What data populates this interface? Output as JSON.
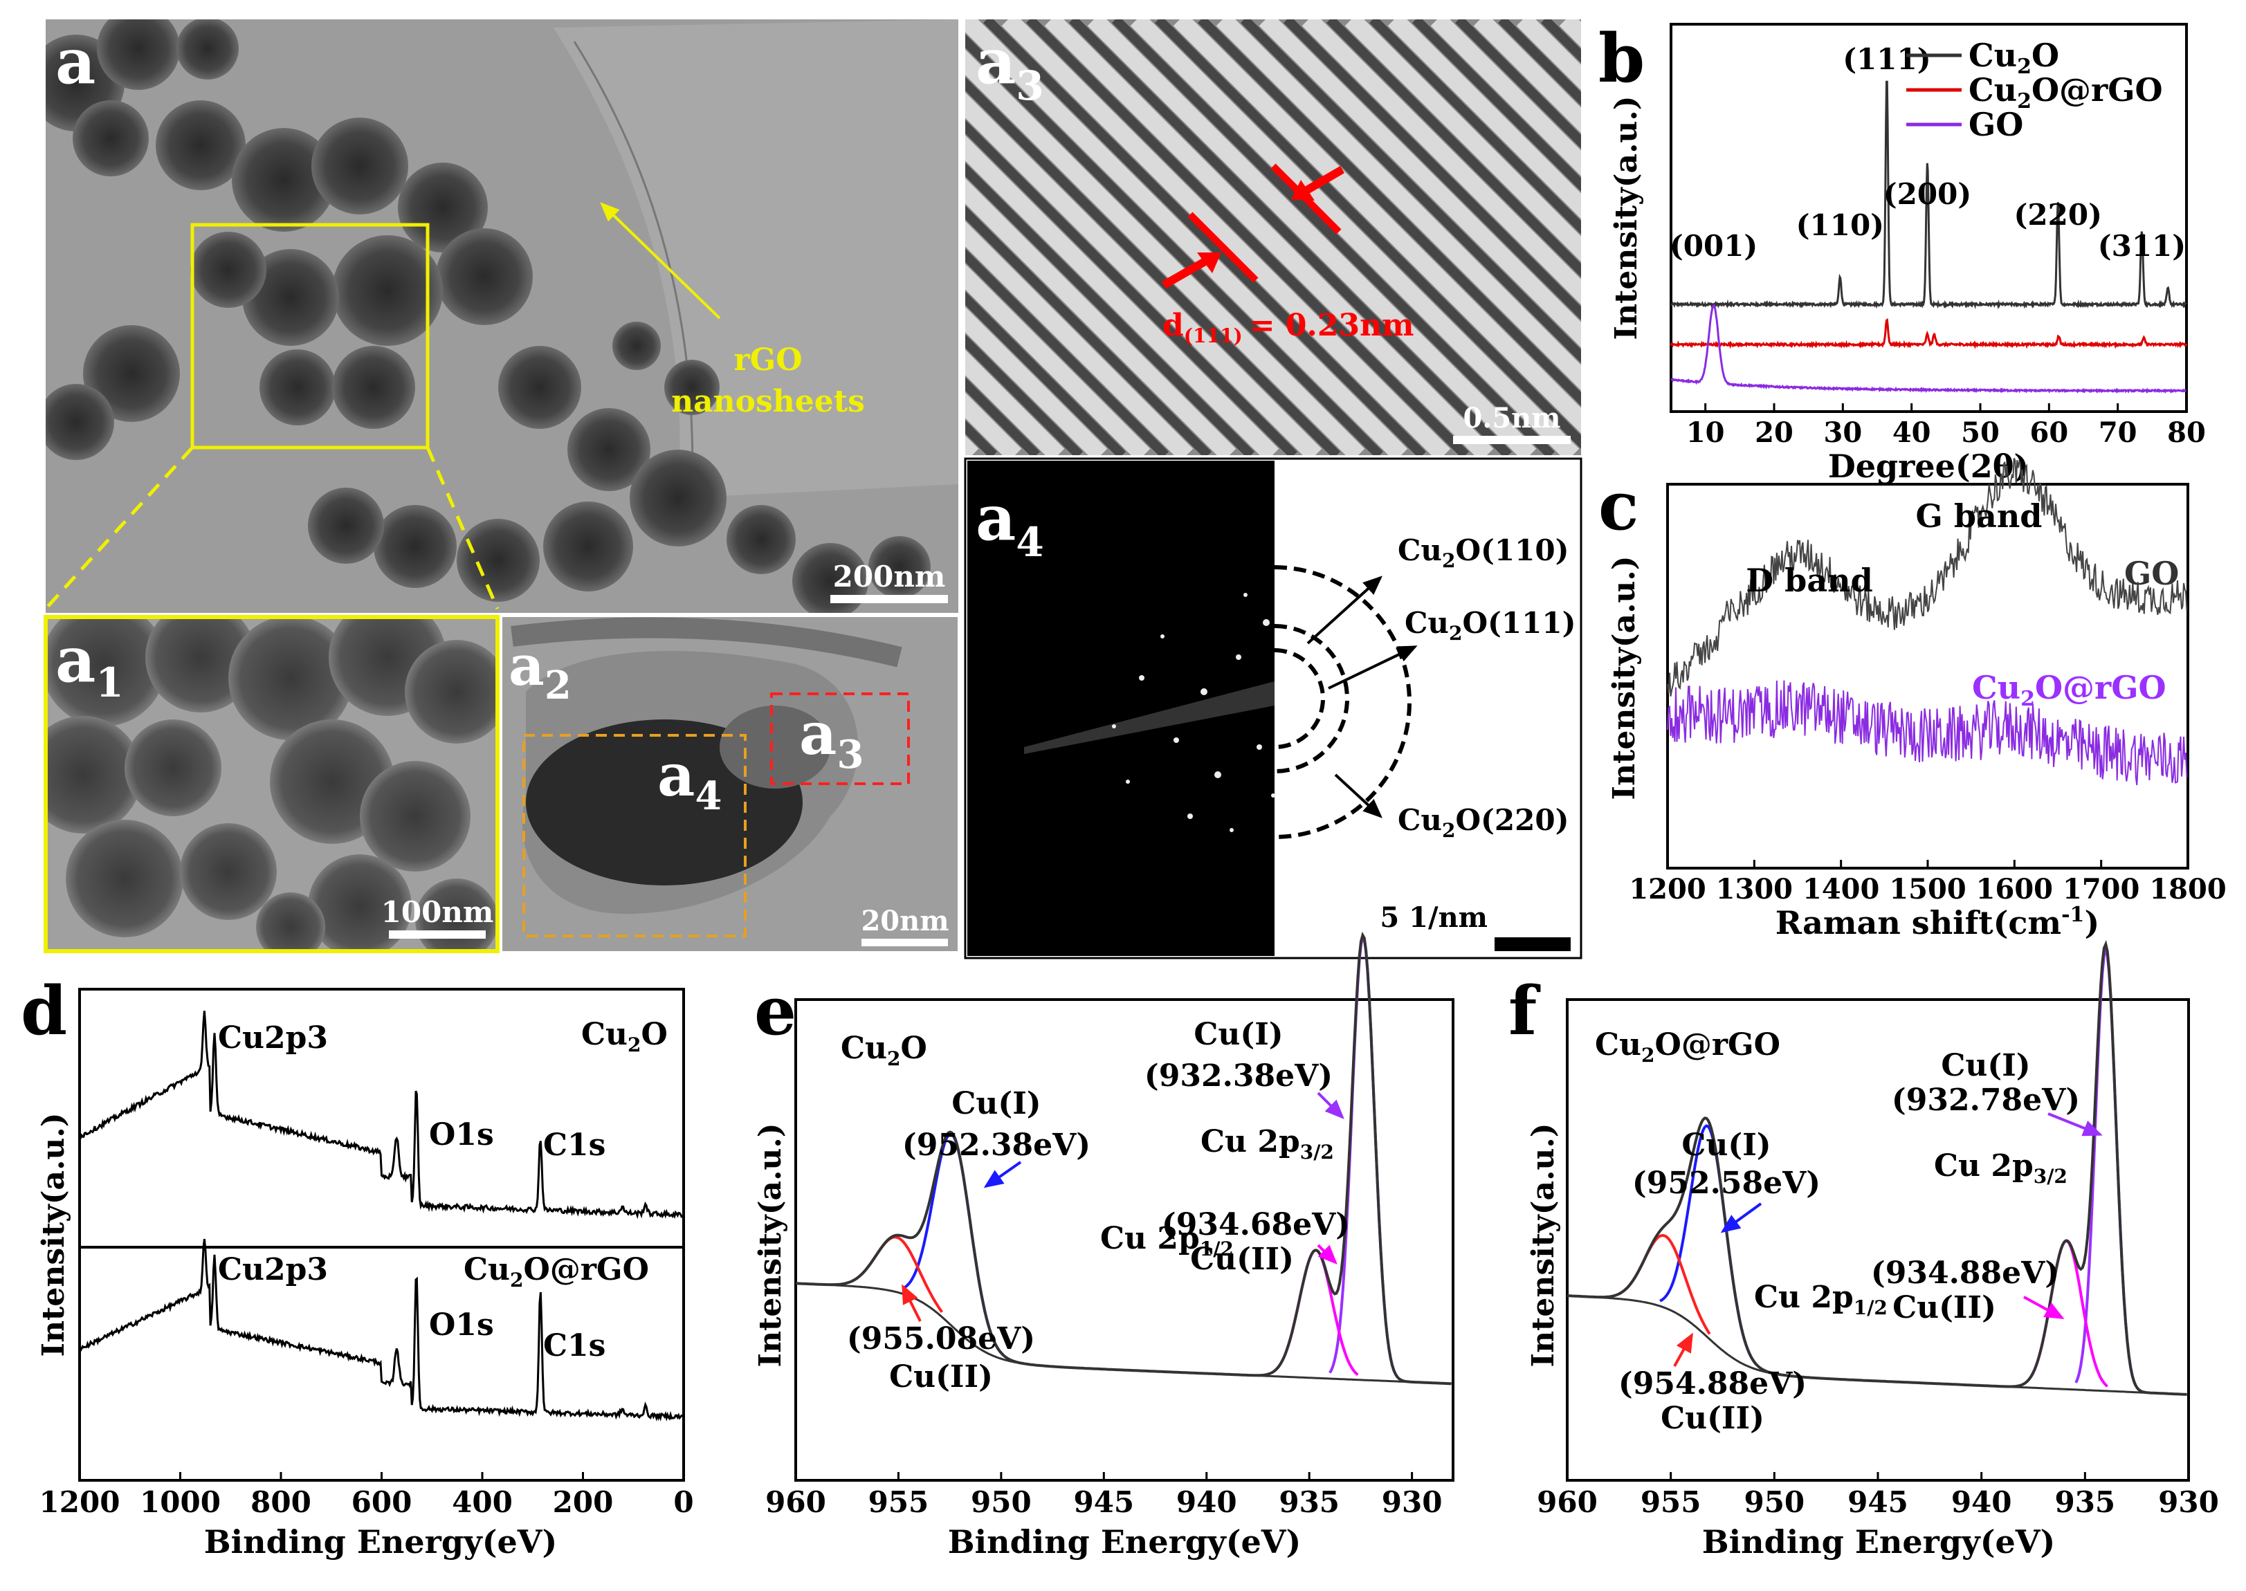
{
  "figure": {
    "panel_letters": {
      "a": "a",
      "b": "b",
      "c": "c",
      "d": "d",
      "e": "e",
      "f": "f"
    },
    "tem": {
      "a": {
        "label": "a",
        "scale_bar": "200nm",
        "rgo_label_1": "rGO",
        "rgo_label_2": "nanosheets"
      },
      "a1": {
        "label": "a",
        "sub": "1",
        "scale_bar": "100nm"
      },
      "a2": {
        "label": "a",
        "sub": "2",
        "scale_bar": "20nm",
        "box_a4": "a",
        "box_a4_sub": "4",
        "box_a3": "a",
        "box_a3_sub": "3"
      },
      "a3": {
        "label": "a",
        "sub": "3",
        "scale_bar": "0.5nm",
        "d_prefix": "d",
        "d_sub": "(111)",
        "d_value": "= 0.23nm"
      },
      "a4": {
        "label": "a",
        "sub": "4",
        "scale_bar": "5 1/nm",
        "rings": [
          {
            "pre": "Cu",
            "sub": "2",
            "post": "O(110)"
          },
          {
            "pre": "Cu",
            "sub": "2",
            "post": "O(111)"
          },
          {
            "pre": "Cu",
            "sub": "2",
            "post": "O(220)"
          }
        ]
      }
    },
    "colors": {
      "cu2o": "#333333",
      "cu2o_rgo": "#e00000",
      "go": "#8a2be2",
      "fit_blue": "#1a1aff",
      "fit_red": "#ff2020",
      "fit_magenta": "#ff00ff",
      "fit_purple": "#9b30ff",
      "yellow": "#f0f000",
      "orange": "#e8a020",
      "dashred": "#ff2020"
    }
  },
  "chart_data": [
    {
      "id": "b",
      "type": "line",
      "title": "",
      "xlabel": "Degree(2θ)",
      "ylabel": "Intensity(a.u.)",
      "xlim": [
        5,
        80
      ],
      "x_ticks": [
        10,
        20,
        30,
        40,
        50,
        60,
        70,
        80
      ],
      "legend": [
        {
          "pre": "Cu",
          "sub": "2",
          "post": "O"
        },
        {
          "pre": "Cu",
          "sub": "2",
          "post": "O@rGO"
        },
        {
          "pre": "GO",
          "sub": "",
          "post": ""
        }
      ],
      "peaks_cu2o": [
        {
          "x": 29.6,
          "h": 0.12
        },
        {
          "x": 36.4,
          "h": 1.0
        },
        {
          "x": 42.3,
          "h": 0.62
        },
        {
          "x": 61.3,
          "h": 0.45
        },
        {
          "x": 73.5,
          "h": 0.32
        },
        {
          "x": 77.3,
          "h": 0.07
        }
      ],
      "peaks_cu2o_rgo": [
        {
          "x": 36.4,
          "h": 0.12
        },
        {
          "x": 42.3,
          "h": 0.05
        },
        {
          "x": 43.3,
          "h": 0.05
        },
        {
          "x": 61.4,
          "h": 0.04
        },
        {
          "x": 73.8,
          "h": 0.03
        }
      ],
      "peak_go": {
        "x": 11.2,
        "h": 0.34
      },
      "annotations": [
        {
          "text": "(001)",
          "x": 11.2
        },
        {
          "text": "(110)",
          "x": 29.6
        },
        {
          "text": "(111)",
          "x": 36.4
        },
        {
          "text": "(200)",
          "x": 42.3
        },
        {
          "text": "(220)",
          "x": 61.3
        },
        {
          "text": "(311)",
          "x": 73.5
        }
      ]
    },
    {
      "id": "c",
      "type": "line",
      "xlabel": "Raman shift(cm",
      "xlabel_sup": "-1",
      "xlabel_end": ")",
      "ylabel": "Intensity(a.u.)",
      "xlim": [
        1200,
        1800
      ],
      "x_ticks": [
        1200,
        1300,
        1400,
        1500,
        1600,
        1700,
        1800
      ],
      "annotations": [
        {
          "text": "D band",
          "x": 1350
        },
        {
          "text": "G band",
          "x": 1600
        }
      ],
      "series": [
        {
          "name": "GO",
          "d_band": 1350,
          "g_band": 1600
        },
        {
          "name_pre": "Cu",
          "name_sub": "2",
          "name_post": "O@rGO"
        }
      ]
    },
    {
      "id": "d",
      "type": "line",
      "xlabel": "Binding Energy(eV)",
      "ylabel": "Intensity(a.u.)",
      "xlim": [
        1200,
        0
      ],
      "x_ticks": [
        1200,
        1000,
        800,
        600,
        400,
        200,
        0
      ],
      "top_label": {
        "pre": "Cu",
        "sub": "2",
        "post": "O"
      },
      "bottom_label": {
        "pre": "Cu",
        "sub": "2",
        "post": "O@rGO"
      },
      "peaks": [
        {
          "text": "Cu2p3",
          "x": 932
        },
        {
          "text": "O1s",
          "x": 531
        },
        {
          "text": "C1s",
          "x": 284
        }
      ]
    },
    {
      "id": "e",
      "type": "line",
      "xlabel": "Binding Energy(eV)",
      "ylabel": "Intensity(a.u.)",
      "xlim": [
        960,
        928
      ],
      "x_ticks": [
        960,
        955,
        950,
        945,
        940,
        935,
        930
      ],
      "sample": {
        "pre": "Cu",
        "sub": "2",
        "post": "O"
      },
      "fits": [
        {
          "label": "Cu(I)",
          "energy": "(952.38eV)",
          "center": 952.38
        },
        {
          "label": "Cu(I)",
          "energy": "(932.38eV)",
          "center": 932.38
        },
        {
          "label": "Cu(II)",
          "energy": "(955.08eV)",
          "center": 955.08
        },
        {
          "label": "Cu(II)",
          "energy": "(934.68eV)",
          "center": 934.68
        }
      ],
      "orbitals": [
        {
          "pre": "Cu 2p",
          "sub": "1/2"
        },
        {
          "pre": "Cu 2p",
          "sub": "3/2"
        }
      ]
    },
    {
      "id": "f",
      "type": "line",
      "xlabel": "Binding Energy(eV)",
      "ylabel": "Intensity(a.u.)",
      "xlim": [
        960,
        930
      ],
      "x_ticks": [
        960,
        955,
        950,
        945,
        940,
        935,
        930
      ],
      "sample": {
        "pre": "Cu",
        "sub": "2",
        "post": "O@rGO"
      },
      "fits": [
        {
          "label": "Cu(I)",
          "energy": "(952.58eV)",
          "center": 952.58
        },
        {
          "label": "Cu(I)",
          "energy": "(932.78eV)",
          "center": 932.78
        },
        {
          "label": "Cu(II)",
          "energy": "(954.88eV)",
          "center": 954.88
        },
        {
          "label": "Cu(II)",
          "energy": "(934.88eV)",
          "center": 934.88
        }
      ],
      "orbitals": [
        {
          "pre": "Cu 2p",
          "sub": "1/2"
        },
        {
          "pre": "Cu 2p",
          "sub": "3/2"
        }
      ]
    }
  ]
}
